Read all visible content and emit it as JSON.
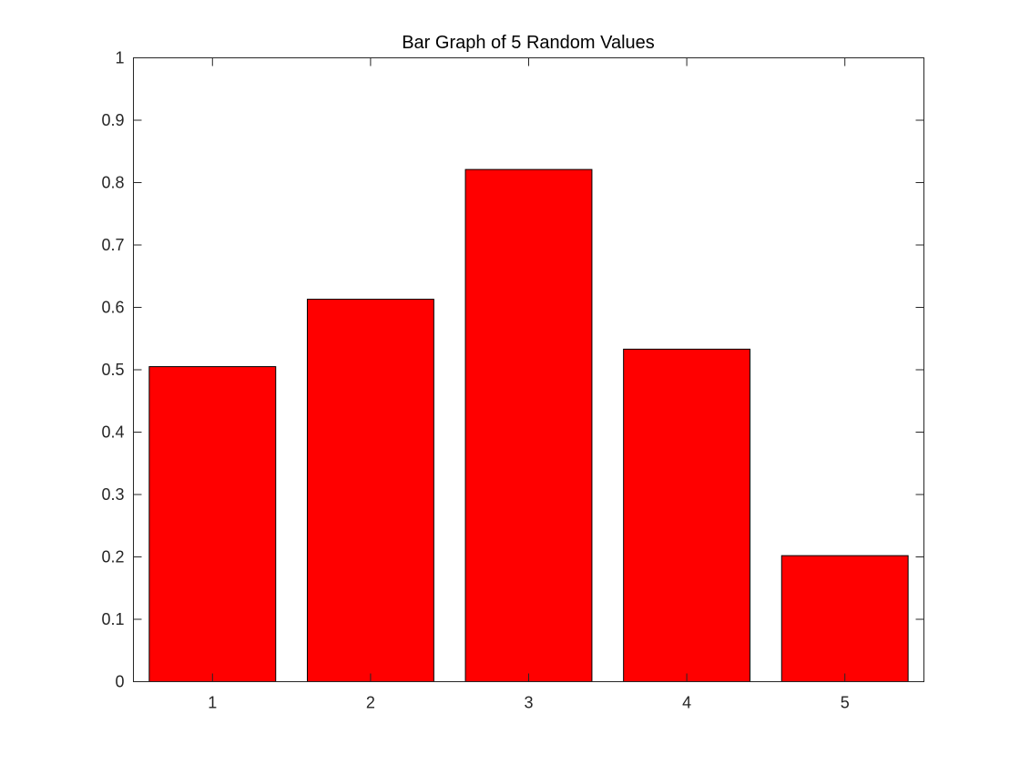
{
  "chart_data": {
    "type": "bar",
    "title": "Bar Graph of 5 Random Values",
    "xlabel": "",
    "ylabel": "",
    "categories": [
      "1",
      "2",
      "3",
      "4",
      "5"
    ],
    "values": [
      0.505,
      0.613,
      0.821,
      0.533,
      0.202
    ],
    "ylim": [
      0,
      1
    ],
    "yticks": [
      0,
      0.1,
      0.2,
      0.3,
      0.4,
      0.5,
      0.6,
      0.7,
      0.8,
      0.9,
      1
    ],
    "ytick_labels": [
      "0",
      "0.1",
      "0.2",
      "0.3",
      "0.4",
      "0.5",
      "0.6",
      "0.7",
      "0.8",
      "0.9",
      "1"
    ],
    "grid": false,
    "legend": "none",
    "bar_color": "#ff0000",
    "bar_edge_color": "#000000"
  }
}
